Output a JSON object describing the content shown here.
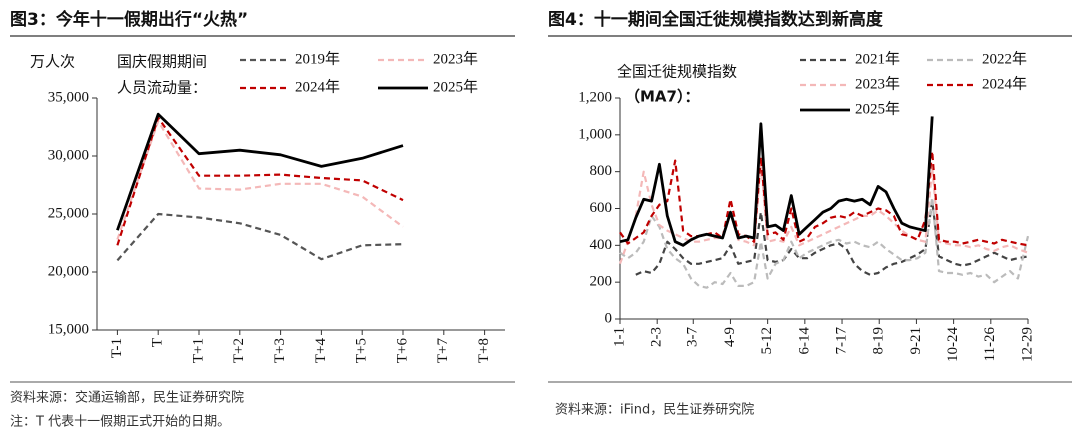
{
  "chart_data": [
    {
      "type": "line",
      "title": "图3：今年十一假期出行“火热”",
      "y_label": "万人次",
      "annotation": [
        "国庆假期期间",
        "人员流动量："
      ],
      "categories": [
        "T-1",
        "T",
        "T+1",
        "T+2",
        "T+3",
        "T+4",
        "T+5",
        "T+6",
        "T+7",
        "T+8"
      ],
      "series": [
        {
          "name": "2019年",
          "color": "#555555",
          "style": "dashed",
          "values": [
            21000,
            25000,
            24700,
            24200,
            23200,
            21100,
            22300,
            22400,
            null,
            null
          ]
        },
        {
          "name": "2023年",
          "color": "#f4b8b8",
          "style": "dashed",
          "values": [
            22800,
            33000,
            27200,
            27100,
            27600,
            27600,
            26500,
            23900,
            null,
            null
          ]
        },
        {
          "name": "2024年",
          "color": "#c00000",
          "style": "dashed",
          "values": [
            22300,
            33300,
            28300,
            28300,
            28400,
            28100,
            27900,
            26200,
            null,
            null
          ]
        },
        {
          "name": "2025年",
          "color": "#000000",
          "style": "solid",
          "values": [
            23600,
            33600,
            30200,
            30500,
            30100,
            29100,
            29800,
            30900,
            null,
            null
          ]
        }
      ],
      "ylim": [
        15000,
        35000
      ],
      "yticks": [
        {
          "value": 15000,
          "label": "15,000"
        },
        {
          "value": 20000,
          "label": "20,000"
        },
        {
          "value": 25000,
          "label": "25,000"
        },
        {
          "value": 30000,
          "label": "30,000"
        },
        {
          "value": 35000,
          "label": "35,000"
        }
      ],
      "source": "资料来源：交通运输部，民生证券研究院",
      "note": "注：T 代表十一假期正式开始的日期。"
    },
    {
      "type": "line",
      "title": "图4：十一期间全国迁徙规模指数达到新高度",
      "annotation": [
        "全国迁徙规模指数",
        "（MA7）："
      ],
      "x": [
        1,
        8,
        15,
        22,
        29,
        36,
        43,
        50,
        57,
        64,
        71,
        78,
        85,
        92,
        99,
        106,
        113,
        120,
        126,
        132,
        139,
        146,
        153,
        160,
        167,
        174,
        181,
        188,
        195,
        202,
        209,
        216,
        223,
        230,
        237,
        244,
        251,
        258,
        265,
        272,
        278,
        284,
        291,
        298,
        305,
        312,
        319,
        326,
        333,
        340,
        347,
        354,
        363
      ],
      "series": [
        {
          "name": "2021年",
          "color": "#444444",
          "style": "dashed",
          "values": [
            null,
            null,
            240,
            260,
            250,
            300,
            420,
            380,
            330,
            300,
            300,
            310,
            320,
            330,
            400,
            300,
            310,
            320,
            580,
            320,
            310,
            320,
            380,
            330,
            330,
            360,
            380,
            400,
            410,
            380,
            300,
            260,
            240,
            250,
            280,
            300,
            310,
            330,
            350,
            380,
            640,
            340,
            320,
            300,
            290,
            300,
            320,
            340,
            360,
            340,
            320,
            330,
            340
          ]
        },
        {
          "name": "2022年",
          "color": "#bbbbbb",
          "style": "dashed",
          "values": [
            360,
            330,
            360,
            420,
            560,
            500,
            380,
            330,
            300,
            220,
            180,
            170,
            200,
            190,
            250,
            180,
            180,
            200,
            420,
            220,
            300,
            320,
            420,
            330,
            360,
            380,
            400,
            420,
            430,
            410,
            420,
            400,
            390,
            420,
            380,
            350,
            320,
            320,
            330,
            360,
            660,
            260,
            250,
            250,
            240,
            250,
            230,
            240,
            200,
            230,
            260,
            220,
            450
          ]
        },
        {
          "name": "2023年",
          "color": "#f4b8b8",
          "style": "dashed",
          "values": [
            300,
            420,
            560,
            800,
            620,
            510,
            480,
            460,
            440,
            420,
            420,
            430,
            440,
            440,
            580,
            430,
            420,
            400,
            860,
            420,
            430,
            420,
            500,
            400,
            420,
            440,
            460,
            480,
            500,
            520,
            540,
            560,
            560,
            590,
            560,
            520,
            480,
            450,
            430,
            420,
            820,
            420,
            410,
            400,
            400,
            390,
            400,
            380,
            370,
            390,
            400,
            380,
            360
          ]
        },
        {
          "name": "2024年",
          "color": "#c00000",
          "style": "dashed",
          "values": [
            470,
            410,
            440,
            470,
            560,
            620,
            640,
            860,
            480,
            450,
            450,
            460,
            470,
            440,
            650,
            460,
            450,
            420,
            880,
            460,
            470,
            430,
            600,
            420,
            440,
            500,
            520,
            550,
            560,
            550,
            580,
            560,
            580,
            600,
            590,
            560,
            460,
            450,
            430,
            540,
            910,
            430,
            420,
            420,
            410,
            420,
            430,
            420,
            410,
            430,
            420,
            410,
            400
          ]
        },
        {
          "name": "2025年",
          "color": "#000000",
          "style": "solid",
          "values": [
            420,
            430,
            550,
            650,
            640,
            840,
            560,
            420,
            400,
            430,
            450,
            460,
            450,
            440,
            580,
            440,
            450,
            440,
            1060,
            500,
            510,
            480,
            670,
            460,
            500,
            540,
            580,
            600,
            640,
            650,
            640,
            650,
            620,
            720,
            690,
            600,
            520,
            500,
            490,
            480,
            1100,
            null,
            null,
            null,
            null,
            null,
            null,
            null,
            null,
            null,
            null,
            null,
            null
          ]
        }
      ],
      "xlim": [
        1,
        363
      ],
      "xticks": [
        {
          "value": 1,
          "label": "1-1"
        },
        {
          "value": 34,
          "label": "2-3"
        },
        {
          "value": 66,
          "label": "3-7"
        },
        {
          "value": 99,
          "label": "4-9"
        },
        {
          "value": 132,
          "label": "5-12"
        },
        {
          "value": 165,
          "label": "6-14"
        },
        {
          "value": 198,
          "label": "7-17"
        },
        {
          "value": 231,
          "label": "8-19"
        },
        {
          "value": 264,
          "label": "9-21"
        },
        {
          "value": 297,
          "label": "10-24"
        },
        {
          "value": 330,
          "label": "11-26"
        },
        {
          "value": 363,
          "label": "12-29"
        }
      ],
      "ylim": [
        0,
        1200
      ],
      "yticks": [
        0,
        200,
        400,
        600,
        800,
        {
          "value": 1000,
          "label": "1,000"
        },
        {
          "value": 1200,
          "label": "1,200"
        }
      ],
      "source": "资料来源：iFind，民生证券研究院"
    }
  ]
}
